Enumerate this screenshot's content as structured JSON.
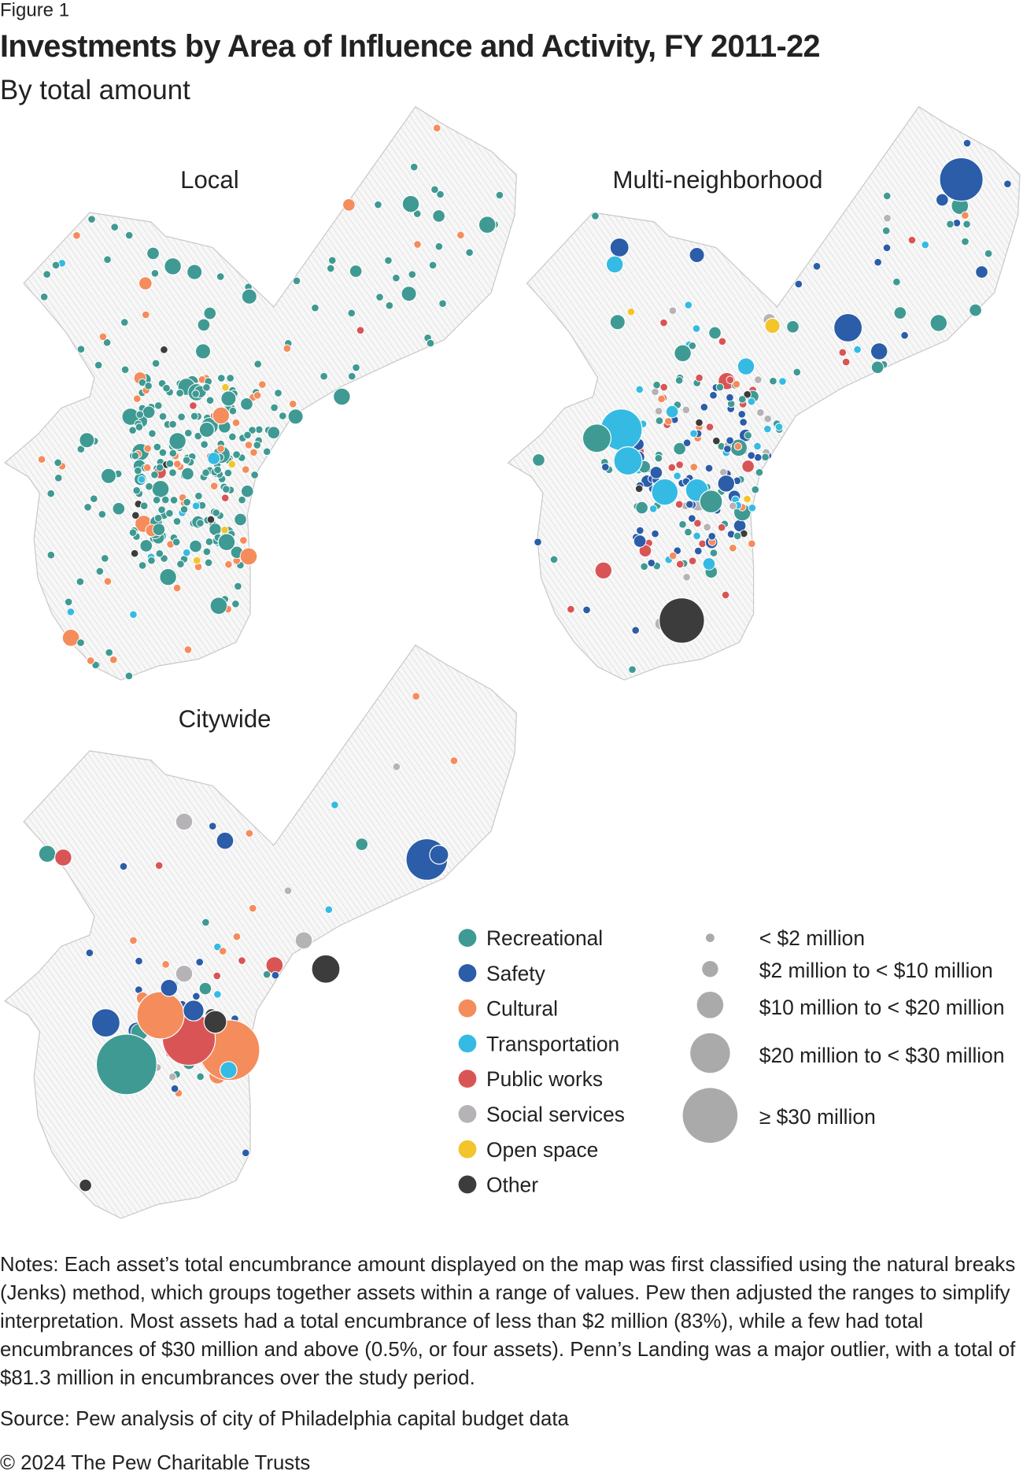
{
  "header": {
    "figure_label": "Figure 1",
    "title": "Investments by Area of Influence and Activity, FY 2011-22",
    "subtitle": "By total amount"
  },
  "chart_data": {
    "type": "proportional-symbol-map",
    "panels": [
      {
        "label": "Local",
        "dominant_category": "Recreational"
      },
      {
        "label": "Multi-neighborhood"
      },
      {
        "label": "Citywide"
      }
    ],
    "categories": [
      {
        "name": "Recreational",
        "color": "#3f9a93"
      },
      {
        "name": "Safety",
        "color": "#2b5da8"
      },
      {
        "name": "Cultural",
        "color": "#f58c5c"
      },
      {
        "name": "Transportation",
        "color": "#35bbe3"
      },
      {
        "name": "Public works",
        "color": "#d95555"
      },
      {
        "name": "Social services",
        "color": "#b5b3b5"
      },
      {
        "name": "Open space",
        "color": "#f3c42c"
      },
      {
        "name": "Other",
        "color": "#3c3c3c"
      }
    ],
    "size_classes": [
      "< $2 million",
      "$2 million to < $10 million",
      "$10 million to < $20 million",
      "$20 million to < $30 million",
      "≥ $30 million"
    ],
    "size_legend_color": "#aaaaaa",
    "map_fill": "hatched light gray"
  },
  "footer": {
    "notes": "Notes: Each asset’s total encumbrance amount displayed on the map was first classified using the natural breaks (Jenks) method, which groups together assets within a range of values. Pew then adjusted the ranges to simplify interpretation. Most assets had a total encumbrance of less than $2 million (83%), while a few had total encumbrances of $30 million and above (0.5%, or four assets). Penn’s Landing was a major outlier, with a total of $81.3 million in encumbrances over the study period.",
    "source": "Source: Pew analysis of city of Philadelphia capital budget data",
    "copyright": "© 2024 The Pew Charitable Trusts"
  }
}
